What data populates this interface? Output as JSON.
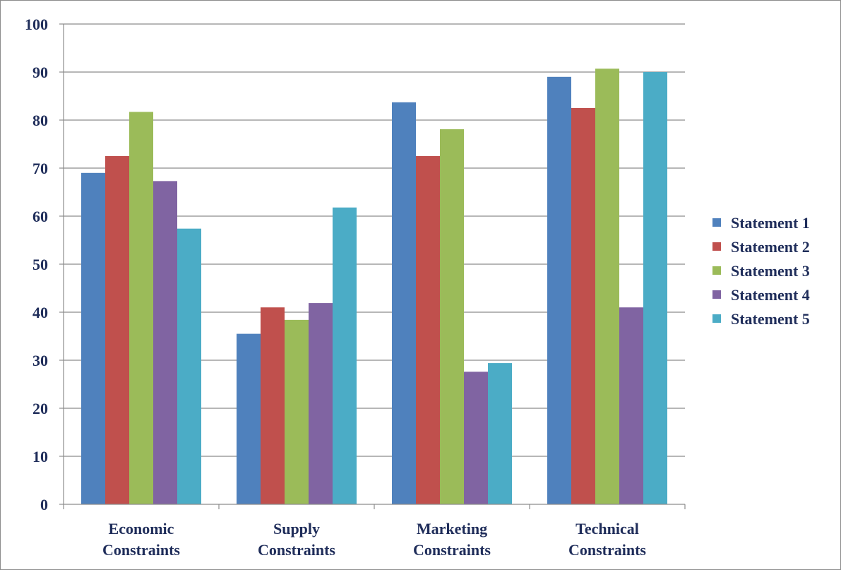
{
  "chart_data": {
    "type": "bar",
    "title": "",
    "xlabel": "",
    "ylabel": "",
    "ylim": [
      0,
      100
    ],
    "yticks": [
      0,
      10,
      20,
      30,
      40,
      50,
      60,
      70,
      80,
      90,
      100
    ],
    "grid": true,
    "legend_position": "right",
    "categories": [
      [
        "Economic",
        "Constraints"
      ],
      [
        "Supply",
        "Constraints"
      ],
      [
        "Marketing",
        "Constraints"
      ],
      [
        "Technical",
        "Constraints"
      ]
    ],
    "series": [
      {
        "name": "Statement 1",
        "color": "#4f81bd",
        "values": [
          69,
          35.5,
          83.7,
          89
        ]
      },
      {
        "name": "Statement 2",
        "color": "#c0504d",
        "values": [
          72.5,
          41,
          72.5,
          82.5
        ]
      },
      {
        "name": "Statement 3",
        "color": "#9bbb59",
        "values": [
          81.7,
          38.4,
          78.1,
          90.7
        ]
      },
      {
        "name": "Statement 4",
        "color": "#8064a2",
        "values": [
          67.3,
          41.9,
          27.6,
          41
        ]
      },
      {
        "name": "Statement 5",
        "color": "#4bacc6",
        "values": [
          57.4,
          61.8,
          29.4,
          90
        ]
      }
    ]
  }
}
